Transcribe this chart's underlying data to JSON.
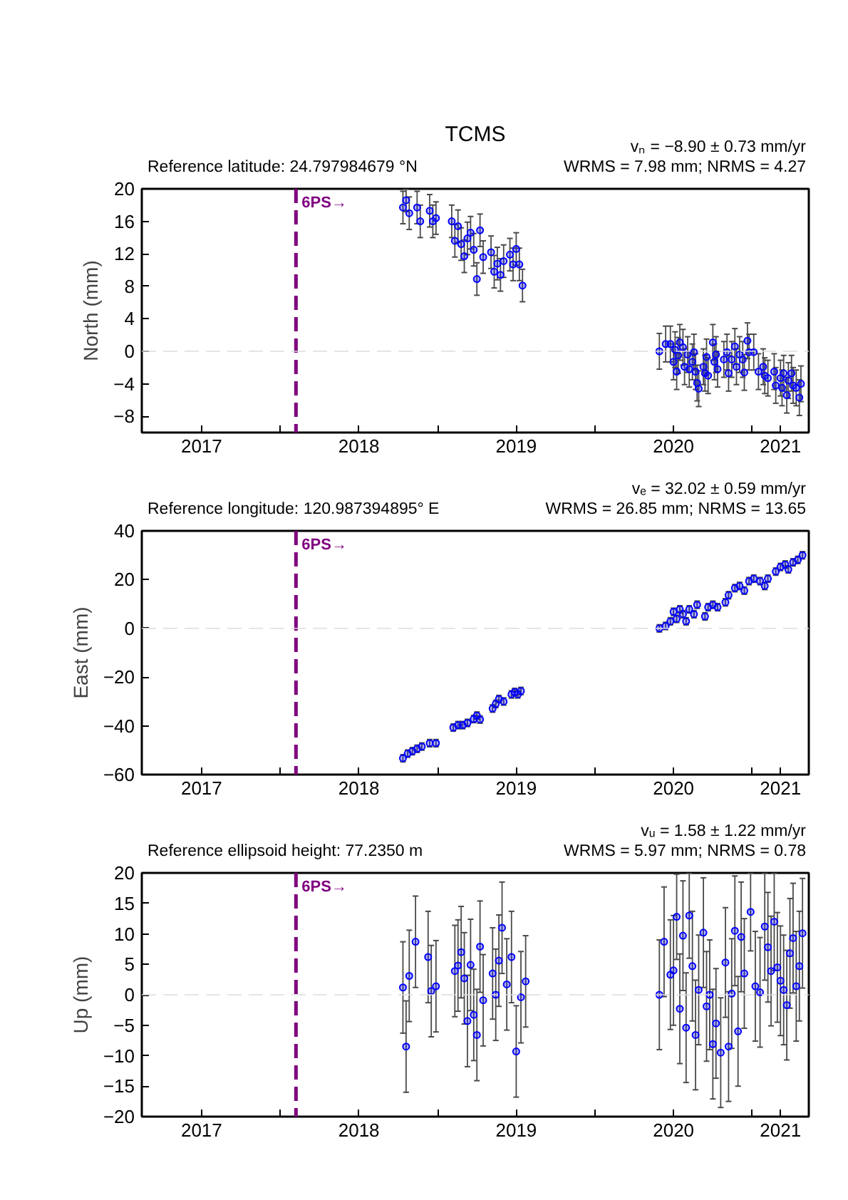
{
  "chart_data": [
    {
      "type": "scatter",
      "title": "TCMS",
      "ylabel": "North (mm)",
      "annotations": [
        "Reference latitude: 24.797984679 °N",
        "vₙ = −8.90 ± 0.73 mm/yr",
        "WRMS = 7.98 mm; NRMS = 4.27"
      ],
      "xlim": [
        2017.12,
        2021.36
      ],
      "ylim": [
        -10,
        20
      ],
      "xticks": [
        {
          "value": 2017.5,
          "label": "2017"
        },
        {
          "value": 2018,
          "label": null
        },
        {
          "value": 2018.5,
          "label": "2018"
        },
        {
          "value": 2019,
          "label": null
        },
        {
          "value": 2019.5,
          "label": "2019"
        },
        {
          "value": 2020,
          "label": null
        },
        {
          "value": 2020.5,
          "label": "2020"
        },
        {
          "value": 2021,
          "label": null
        },
        {
          "value": 2021.18,
          "label": "2021"
        }
      ],
      "yticks": [
        -8,
        -4,
        0,
        4,
        8,
        12,
        16,
        20
      ],
      "marker": "circle",
      "ref_lines": [
        {
          "axis": "x",
          "value": 2018.1,
          "label": "6PS→",
          "color": "#800080",
          "line_style": "dashed"
        },
        {
          "axis": "y",
          "value": 0,
          "color": "#dddddd",
          "line_style": "dashed"
        }
      ],
      "series": [
        {
          "color": "#0000ff",
          "x": [
            2018.78,
            2018.8,
            2018.82,
            2018.87,
            2018.89,
            2018.95,
            2018.97,
            2018.99,
            2019.09,
            2019.11,
            2019.13,
            2019.15,
            2019.17,
            2019.19,
            2019.21,
            2019.23,
            2019.25,
            2019.27,
            2019.29,
            2019.34,
            2019.36,
            2019.38,
            2019.4,
            2019.42,
            2019.46,
            2019.48,
            2019.5,
            2019.52,
            2019.54,
            2020.41,
            2020.45,
            2020.48,
            2020.5,
            2020.51,
            2020.52,
            2020.53,
            2020.54,
            2020.56,
            2020.57,
            2020.59,
            2020.6,
            2020.62,
            2020.63,
            2020.64,
            2020.65,
            2020.66,
            2020.69,
            2020.7,
            2020.71,
            2020.72,
            2020.75,
            2020.76,
            2020.77,
            2020.78,
            2020.82,
            2020.84,
            2020.85,
            2020.87,
            2020.89,
            2020.9,
            2020.92,
            2020.94,
            2020.95,
            2020.97,
            2020.98,
            2021.01,
            2021.04,
            2021.07,
            2021.08,
            2021.1,
            2021.14,
            2021.15,
            2021.18,
            2021.19,
            2021.2,
            2021.22,
            2021.23,
            2021.25,
            2021.26,
            2021.28,
            2021.3,
            2021.31
          ],
          "values": [
            17.7,
            18.6,
            17.0,
            17.7,
            16.0,
            17.3,
            16.0,
            16.4,
            16.0,
            13.6,
            15.4,
            13.2,
            11.7,
            13.9,
            14.6,
            12.5,
            8.9,
            14.9,
            11.6,
            12.2,
            9.8,
            10.8,
            9.4,
            11.1,
            11.9,
            10.7,
            12.6,
            10.7,
            8.1,
            0.0,
            0.9,
            0.9,
            -1.3,
            0.2,
            -2.5,
            -0.5,
            1.1,
            0.5,
            -1.9,
            -0.4,
            -2.2,
            -1.3,
            -0.1,
            -2.5,
            -3.9,
            -4.6,
            -1.9,
            -2.7,
            -0.7,
            -3.0,
            1.1,
            -1.3,
            -0.4,
            -2.2,
            -1.0,
            -0.1,
            -2.7,
            -1.0,
            0.6,
            -1.9,
            -0.4,
            -1.0,
            -2.6,
            1.3,
            -0.1,
            -0.1,
            -2.5,
            -1.9,
            -3.0,
            -3.3,
            -2.5,
            -4.2,
            -3.3,
            -4.5,
            -2.7,
            -5.4,
            -3.6,
            -2.7,
            -4.2,
            -4.5,
            -5.7,
            -4.0
          ],
          "errors": [
            2.0,
            1.4,
            2.0,
            2.0,
            2.0,
            2.0,
            2.0,
            2.0,
            2.0,
            2.0,
            2.0,
            2.0,
            2.0,
            2.0,
            2.0,
            2.0,
            2.0,
            2.0,
            2.0,
            2.0,
            2.0,
            2.0,
            2.0,
            2.0,
            2.0,
            2.0,
            2.0,
            2.0,
            2.0,
            2.2,
            2.2,
            2.2,
            2.2,
            2.2,
            2.2,
            2.2,
            2.2,
            2.2,
            2.2,
            2.2,
            2.2,
            2.2,
            2.2,
            2.2,
            2.2,
            2.2,
            2.2,
            2.2,
            2.2,
            2.2,
            2.2,
            2.2,
            2.2,
            2.2,
            2.2,
            2.2,
            2.2,
            2.2,
            2.2,
            2.2,
            2.2,
            2.2,
            2.2,
            2.2,
            2.2,
            2.2,
            2.2,
            2.2,
            2.2,
            2.2,
            2.2,
            2.2,
            2.2,
            2.2,
            2.2,
            2.2,
            2.2,
            2.2,
            2.2,
            2.2,
            2.2,
            2.2
          ]
        }
      ]
    },
    {
      "type": "scatter",
      "ylabel": "East (mm)",
      "annotations": [
        "Reference longitude: 120.987394895° E",
        "vₑ = 32.02 ± 0.59 mm/yr",
        "WRMS = 26.85 mm; NRMS = 13.65"
      ],
      "xlim": [
        2017.12,
        2021.36
      ],
      "ylim": [
        -60,
        40
      ],
      "xticks": [
        {
          "value": 2017.5,
          "label": "2017"
        },
        {
          "value": 2018,
          "label": null
        },
        {
          "value": 2018.5,
          "label": "2018"
        },
        {
          "value": 2019,
          "label": null
        },
        {
          "value": 2019.5,
          "label": "2019"
        },
        {
          "value": 2020,
          "label": null
        },
        {
          "value": 2020.5,
          "label": "2020"
        },
        {
          "value": 2021,
          "label": null
        },
        {
          "value": 2021.18,
          "label": "2021"
        }
      ],
      "yticks": [
        -60,
        -40,
        -20,
        0,
        20,
        40
      ],
      "marker": "circle",
      "ref_lines": [
        {
          "axis": "x",
          "value": 2018.1,
          "label": "6PS→",
          "color": "#800080",
          "line_style": "dashed"
        },
        {
          "axis": "y",
          "value": 0,
          "color": "#dddddd",
          "line_style": "dashed"
        }
      ],
      "series": [
        {
          "color": "#0000ff",
          "x": [
            2018.78,
            2018.81,
            2018.84,
            2018.87,
            2018.9,
            2018.95,
            2018.99,
            2019.1,
            2019.13,
            2019.16,
            2019.19,
            2019.23,
            2019.25,
            2019.27,
            2019.35,
            2019.37,
            2019.39,
            2019.42,
            2019.47,
            2019.49,
            2019.51,
            2019.53,
            2020.41,
            2020.45,
            2020.48,
            2020.5,
            2020.52,
            2020.54,
            2020.56,
            2020.58,
            2020.6,
            2020.63,
            2020.65,
            2020.7,
            2020.72,
            2020.75,
            2020.78,
            2020.83,
            2020.85,
            2020.89,
            2020.92,
            2020.95,
            2020.98,
            2021.01,
            2021.05,
            2021.08,
            2021.1,
            2021.15,
            2021.18,
            2021.21,
            2021.23,
            2021.26,
            2021.29,
            2021.32
          ],
          "values": [
            -53.3,
            -51.4,
            -50.4,
            -49.4,
            -48.5,
            -47.1,
            -47.1,
            -40.7,
            -39.7,
            -39.7,
            -38.8,
            -37.2,
            -35.8,
            -37.4,
            -32.9,
            -31.0,
            -29.0,
            -30.0,
            -27.1,
            -26.1,
            -27.1,
            -25.7,
            0.0,
            1.0,
            2.9,
            6.8,
            3.9,
            7.8,
            5.8,
            2.9,
            7.8,
            5.8,
            9.7,
            4.9,
            8.7,
            9.7,
            8.7,
            10.7,
            13.6,
            16.5,
            17.4,
            15.5,
            19.4,
            20.4,
            19.4,
            17.4,
            20.4,
            23.3,
            25.2,
            26.2,
            24.2,
            27.1,
            28.1,
            30.0
          ],
          "errors": [
            1.5,
            1.5,
            1.5,
            1.5,
            1.5,
            1.5,
            1.5,
            1.5,
            1.5,
            1.5,
            1.5,
            1.5,
            1.5,
            1.5,
            1.5,
            1.5,
            1.5,
            1.5,
            1.5,
            1.5,
            1.5,
            1.5,
            1.5,
            1.5,
            1.5,
            1.5,
            1.5,
            1.5,
            1.5,
            1.5,
            1.5,
            1.5,
            1.5,
            1.5,
            1.5,
            1.5,
            1.5,
            1.5,
            1.5,
            1.5,
            1.5,
            1.5,
            1.5,
            1.5,
            1.5,
            1.5,
            1.5,
            1.5,
            1.5,
            1.5,
            1.5,
            1.5,
            1.5,
            1.5
          ]
        }
      ]
    },
    {
      "type": "scatter",
      "ylabel": "Up (mm)",
      "annotations": [
        "Reference ellipsoid height: 77.2350 m",
        "vᵤ = 1.58 ± 1.22 mm/yr",
        "WRMS = 5.97 mm; NRMS = 0.78"
      ],
      "xlim": [
        2017.12,
        2021.36
      ],
      "ylim": [
        -20,
        20
      ],
      "xticks": [
        {
          "value": 2017.5,
          "label": "2017"
        },
        {
          "value": 2018,
          "label": null
        },
        {
          "value": 2018.5,
          "label": "2018"
        },
        {
          "value": 2019,
          "label": null
        },
        {
          "value": 2019.5,
          "label": "2019"
        },
        {
          "value": 2020,
          "label": null
        },
        {
          "value": 2020.5,
          "label": "2020"
        },
        {
          "value": 2021,
          "label": null
        },
        {
          "value": 2021.18,
          "label": "2021"
        }
      ],
      "yticks": [
        -20,
        -15,
        -10,
        -5,
        0,
        5,
        10,
        15,
        20
      ],
      "marker": "circle",
      "ref_lines": [
        {
          "axis": "x",
          "value": 2018.1,
          "label": "6PS→",
          "color": "#800080",
          "line_style": "dashed"
        },
        {
          "axis": "y",
          "value": 0,
          "color": "#dddddd",
          "line_style": "dashed"
        }
      ],
      "series": [
        {
          "color": "#0000ff",
          "x": [
            2018.78,
            2018.8,
            2018.82,
            2018.86,
            2018.94,
            2018.96,
            2018.99,
            2019.11,
            2019.13,
            2019.15,
            2019.17,
            2019.19,
            2019.21,
            2019.23,
            2019.25,
            2019.27,
            2019.29,
            2019.35,
            2019.37,
            2019.39,
            2019.41,
            2019.44,
            2019.47,
            2019.5,
            2019.53,
            2019.56,
            2020.41,
            2020.44,
            2020.48,
            2020.5,
            2020.52,
            2020.54,
            2020.56,
            2020.58,
            2020.6,
            2020.62,
            2020.64,
            2020.66,
            2020.69,
            2020.71,
            2020.73,
            2020.75,
            2020.77,
            2020.8,
            2020.83,
            2020.85,
            2020.87,
            2020.89,
            2020.91,
            2020.93,
            2020.95,
            2020.99,
            2021.02,
            2021.05,
            2021.08,
            2021.1,
            2021.12,
            2021.14,
            2021.16,
            2021.18,
            2021.2,
            2021.22,
            2021.24,
            2021.26,
            2021.28,
            2021.3,
            2021.32
          ],
          "values": [
            1.2,
            -8.5,
            3.1,
            8.7,
            6.2,
            0.6,
            1.4,
            3.9,
            4.8,
            7.0,
            2.7,
            -4.3,
            4.9,
            -3.3,
            -6.6,
            7.9,
            -0.9,
            3.5,
            0.0,
            5.6,
            11.0,
            1.7,
            6.2,
            -9.3,
            -0.4,
            2.2,
            0.0,
            8.7,
            3.3,
            4.0,
            12.8,
            -2.3,
            9.7,
            -5.4,
            13.0,
            4.7,
            -6.6,
            0.8,
            10.2,
            -1.9,
            0.0,
            -8.1,
            -4.7,
            -9.5,
            5.3,
            -8.5,
            0.2,
            10.5,
            -6.0,
            9.5,
            3.5,
            13.6,
            1.4,
            0.4,
            11.2,
            7.8,
            3.9,
            12.0,
            4.5,
            2.3,
            0.8,
            -1.7,
            6.8,
            9.3,
            1.4,
            4.7,
            10.1
          ],
          "errors": [
            7.5,
            7.5,
            7.5,
            7.5,
            7.5,
            7.5,
            7.5,
            7.5,
            7.5,
            7.5,
            7.5,
            7.5,
            7.5,
            7.5,
            7.5,
            7.5,
            7.5,
            7.5,
            7.5,
            7.5,
            7.5,
            7.5,
            7.5,
            7.5,
            7.5,
            7.5,
            9.0,
            9.0,
            9.0,
            9.0,
            7.0,
            9.0,
            9.0,
            9.0,
            7.0,
            9.0,
            9.0,
            9.0,
            9.0,
            9.0,
            9.0,
            9.0,
            9.0,
            9.0,
            9.0,
            9.0,
            9.0,
            9.0,
            9.0,
            9.0,
            9.0,
            6.4,
            9.0,
            9.0,
            8.8,
            9.0,
            9.0,
            8.0,
            9.0,
            9.0,
            9.0,
            9.0,
            9.0,
            9.0,
            9.0,
            9.0,
            9.0
          ]
        }
      ]
    }
  ]
}
